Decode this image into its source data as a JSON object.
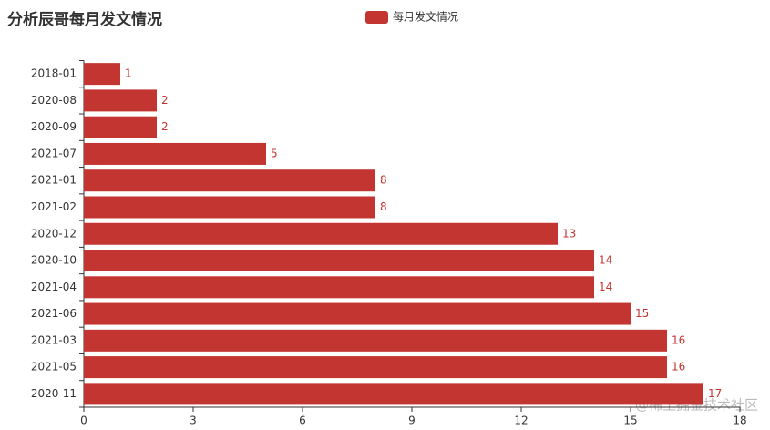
{
  "chart_data": {
    "type": "hbar",
    "title": "分析辰哥每月发文情况",
    "categories": [
      "2018-01",
      "2020-08",
      "2020-09",
      "2021-07",
      "2021-01",
      "2021-02",
      "2020-12",
      "2020-10",
      "2021-04",
      "2021-06",
      "2021-03",
      "2021-05",
      "2020-11"
    ],
    "series": [
      {
        "name": "每月发文情况",
        "color": "#c23531",
        "values": [
          1,
          2,
          2,
          5,
          8,
          8,
          13,
          14,
          14,
          15,
          16,
          16,
          17
        ]
      }
    ],
    "xlim": [
      0,
      18
    ],
    "xticks": [
      0,
      3,
      6,
      9,
      12,
      15,
      18
    ],
    "grid": false,
    "legend": "top",
    "watermark": "@稀土掘金技术社区"
  }
}
